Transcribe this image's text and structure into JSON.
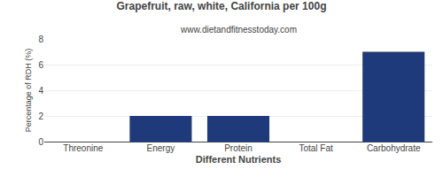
{
  "chart_data": {
    "type": "bar",
    "title": "Grapefruit, raw, white, California per 100g",
    "subtitle": "www.dietandfitnesstoday.com",
    "xlabel": "Different Nutrients",
    "ylabel": "Percentage of RDH (%)",
    "categories": [
      "Threonine",
      "Energy",
      "Protein",
      "Total Fat",
      "Carbohydrate"
    ],
    "values": [
      0,
      2,
      2,
      0,
      7
    ],
    "color": "#1f3a7a",
    "ylim": [
      0,
      8
    ],
    "yticks": [
      0,
      2,
      4,
      6,
      8
    ],
    "grid": true
  }
}
